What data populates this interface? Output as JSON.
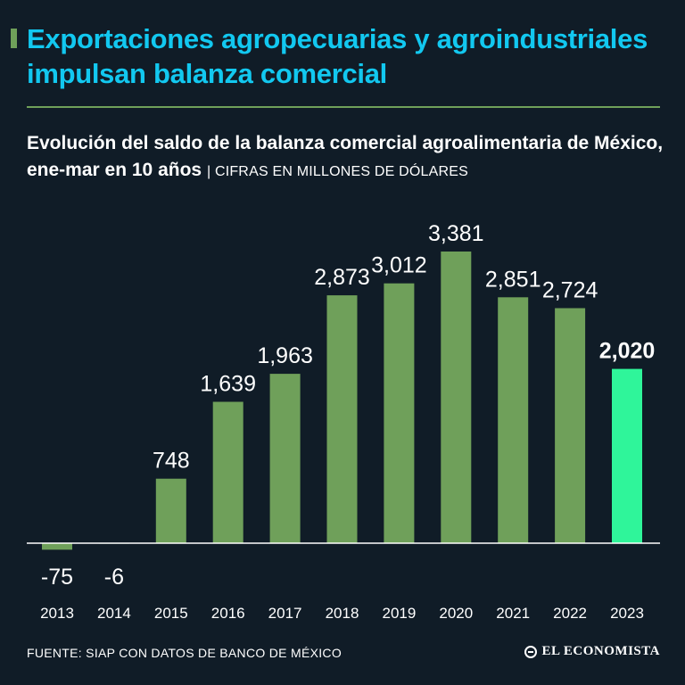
{
  "header": {
    "title": "Exportaciones agropecuarias y agroindustriales impulsan balanza comercial",
    "subtitle": "Evolución del saldo de la balanza comercial agroalimentaria de México, ene-mar en 10 años",
    "units": "| CIFRAS EN MILLONES DE DÓLARES"
  },
  "footer": {
    "source": "FUENTE: SIAP CON DATOS DE BANCO DE MÉXICO",
    "brand": "EL ECONOMISTA"
  },
  "colors": {
    "background": "#101c27",
    "title": "#12c8f0",
    "bar": "#6fa05a",
    "highlight_bar": "#2ff59a",
    "text": "#ffffff"
  },
  "chart_data": {
    "type": "bar",
    "categories": [
      "2013",
      "2014",
      "2015",
      "2016",
      "2017",
      "2018",
      "2019",
      "2020",
      "2021",
      "2022",
      "2023"
    ],
    "values": [
      -75,
      -6,
      748,
      1639,
      1963,
      2873,
      3012,
      3381,
      2851,
      2724,
      2020
    ],
    "labels": [
      "-75",
      "-6",
      "748",
      "1,639",
      "1,963",
      "2,873",
      "3,012",
      "3,381",
      "2,851",
      "2,724",
      "2,020"
    ],
    "highlight": "2023",
    "title": "",
    "xlabel": "",
    "ylabel": "",
    "ylim": [
      -100,
      3500
    ],
    "grid": false,
    "legend": "none"
  }
}
